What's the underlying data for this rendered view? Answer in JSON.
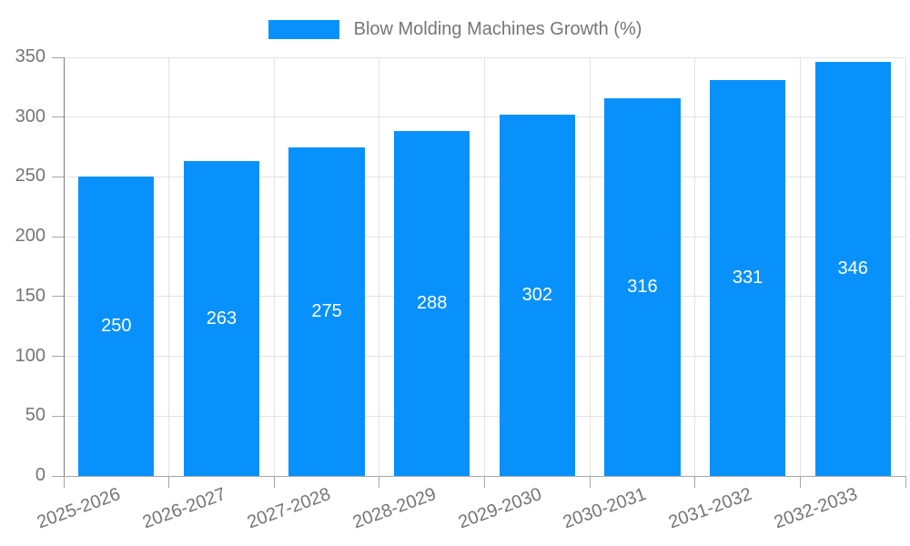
{
  "legend": {
    "label": "Blow Molding Machines Growth (%)"
  },
  "chart_data": {
    "type": "bar",
    "title": "Blow Molding Machines Growth (%)",
    "categories": [
      "2025-2026",
      "2026-2027",
      "2027-2028",
      "2028-2029",
      "2029-2030",
      "2030-2031",
      "2031-2032",
      "2032-2033"
    ],
    "values": [
      250,
      263,
      275,
      288,
      302,
      316,
      331,
      346
    ],
    "xlabel": "",
    "ylabel": "",
    "ylim": [
      0,
      350
    ],
    "yticks": [
      0,
      50,
      100,
      150,
      200,
      250,
      300,
      350
    ],
    "grid": true,
    "legend_position": "top-center",
    "bar_labels_inside": true,
    "x_label_rotation_deg": -20,
    "colors": {
      "bar": "#0991fb",
      "bar_label": "#ffffff",
      "axis_text": "#757575",
      "grid_line": "#e3e3e3",
      "y_axis_line": "#7a7a7a",
      "x_baseline": "#a6a6a6",
      "tick": "#a6a6a6",
      "background": "#ffffff"
    }
  }
}
